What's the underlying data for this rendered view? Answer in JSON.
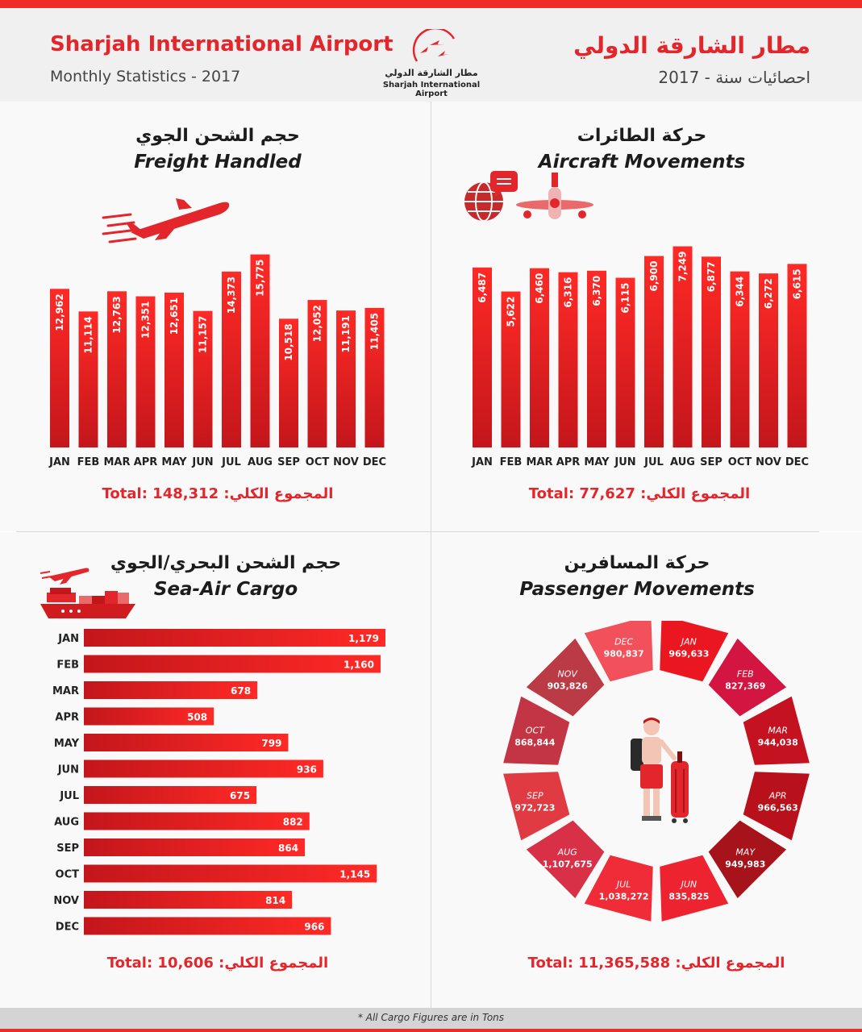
{
  "header": {
    "title_en": "Sharjah International Airport",
    "subtitle_en": "Monthly Statistics - 2017",
    "title_ar": "مطار الشارقة الدولي",
    "subtitle_ar": "احصائيات سنة - 2017",
    "logo_text_ar": "مطار الشارقة الدولي",
    "logo_text_en": "Sharjah International Airport"
  },
  "colors": {
    "accent": "#e3262b",
    "bar_dark": "#c3161b",
    "bar_light": "#ff2a26",
    "panel_bg": "#f9f9f9",
    "header_bg": "#f0f0f0"
  },
  "icons": {
    "logo": "birds-logo-icon",
    "freight": "airplane-icon",
    "aircraft": "globe-airplane-icon",
    "sea_air": "ship-airplane-icon",
    "passenger": "traveler-suitcase-icon"
  },
  "panels": {
    "freight": {
      "title_ar": "حجم الشحن الجوي",
      "title_en": "Freight Handled",
      "total": "Total: 148,312 :المجموع الكلي"
    },
    "aircraft": {
      "title_ar": "حركة الطائرات",
      "title_en": "Aircraft Movements",
      "total": "Total: 77,627 :المجموع الكلي"
    },
    "sea_air": {
      "title_ar": "حجم الشحن البحري/الجوي",
      "title_en": "Sea-Air Cargo",
      "total": "Total: 10,606 :المجموع الكلي"
    },
    "passenger": {
      "title_ar": "حركة المسافرين",
      "title_en": "Passenger Movements",
      "total": "Total: 11,365,588 :المجموع الكلي"
    }
  },
  "footer": {
    "note": "* All Cargo Figures are in Tons"
  },
  "chart_data": [
    {
      "id": "freight",
      "type": "bar",
      "orientation": "vertical",
      "categories": [
        "JAN",
        "FEB",
        "MAR",
        "APR",
        "MAY",
        "JUN",
        "JUL",
        "AUG",
        "SEP",
        "OCT",
        "NOV",
        "DEC"
      ],
      "values": [
        12962,
        11114,
        12763,
        12351,
        12651,
        11157,
        14373,
        15775,
        10518,
        12052,
        11191,
        11405
      ],
      "labels": [
        "12,962",
        "11,114",
        "12,763",
        "12,351",
        "12,651",
        "11,157",
        "14,373",
        "15,775",
        "10,518",
        "12,052",
        "11,191",
        "11,405"
      ],
      "ylim": [
        0,
        16800
      ]
    },
    {
      "id": "aircraft",
      "type": "bar",
      "orientation": "vertical",
      "categories": [
        "JAN",
        "FEB",
        "MAR",
        "APR",
        "MAY",
        "JUN",
        "JUL",
        "AUG",
        "SEP",
        "OCT",
        "NOV",
        "DEC"
      ],
      "values": [
        6487,
        5622,
        6460,
        6316,
        6370,
        6115,
        6900,
        7249,
        6877,
        6344,
        6272,
        6615
      ],
      "labels": [
        "6,487",
        "5,622",
        "6,460",
        "6,316",
        "6,370",
        "6,115",
        "6,900",
        "7,249",
        "6,877",
        "6,344",
        "6,272",
        "6,615"
      ],
      "ylim": [
        0,
        7700
      ]
    },
    {
      "id": "sea_air",
      "type": "bar",
      "orientation": "horizontal",
      "categories": [
        "JAN",
        "FEB",
        "MAR",
        "APR",
        "MAY",
        "JUN",
        "JUL",
        "AUG",
        "SEP",
        "OCT",
        "NOV",
        "DEC"
      ],
      "values": [
        1179,
        1160,
        678,
        508,
        799,
        936,
        675,
        882,
        864,
        1145,
        814,
        966
      ],
      "labels": [
        "1,179",
        "1,160",
        "678",
        "508",
        "799",
        "936",
        "675",
        "882",
        "864",
        "1,145",
        "814",
        "966"
      ],
      "xlim": [
        0,
        1179
      ]
    },
    {
      "id": "passenger",
      "type": "pie",
      "style": "ring",
      "categories": [
        "JAN",
        "FEB",
        "MAR",
        "APR",
        "MAY",
        "JUN",
        "JUL",
        "AUG",
        "SEP",
        "OCT",
        "NOV",
        "DEC"
      ],
      "values": [
        969633,
        827369,
        944038,
        966563,
        949983,
        835825,
        1038272,
        1107675,
        972723,
        868844,
        903826,
        980837
      ],
      "labels": [
        "969,633",
        "827,369",
        "944,038",
        "966,563",
        "949,983",
        "835,825",
        "1,038,272",
        "1,107,675",
        "972,723",
        "868,844",
        "903,826",
        "980,837"
      ],
      "colors": [
        "#ea1620",
        "#d21541",
        "#c41220",
        "#b8111b",
        "#a7131b",
        "#ee2330",
        "#ef2c38",
        "#d83047",
        "#e03a43",
        "#c33544",
        "#ba3a45",
        "#f2505a"
      ]
    }
  ]
}
